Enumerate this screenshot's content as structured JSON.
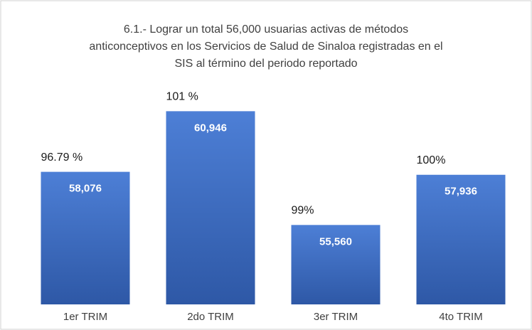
{
  "chart_data": {
    "type": "bar",
    "title": [
      "6.1.- Lograr un total 56,000 usuarias activas de métodos",
      "anticonceptivos en los Servicios de Salud de Sinaloa registradas en el",
      "SIS al término del periodo reportado"
    ],
    "categories": [
      "1er TRIM",
      "2do TRIM",
      "3er TRIM",
      "4to TRIM"
    ],
    "values": [
      58076,
      60946,
      55560,
      57936
    ],
    "value_labels": [
      "58,076",
      "60,946",
      "55,560",
      "57,936"
    ],
    "percent_labels": [
      "96.79 %",
      "101 %",
      "99%",
      "100%"
    ],
    "color": "#4472c4",
    "ylim": [
      51800,
      61800
    ]
  }
}
